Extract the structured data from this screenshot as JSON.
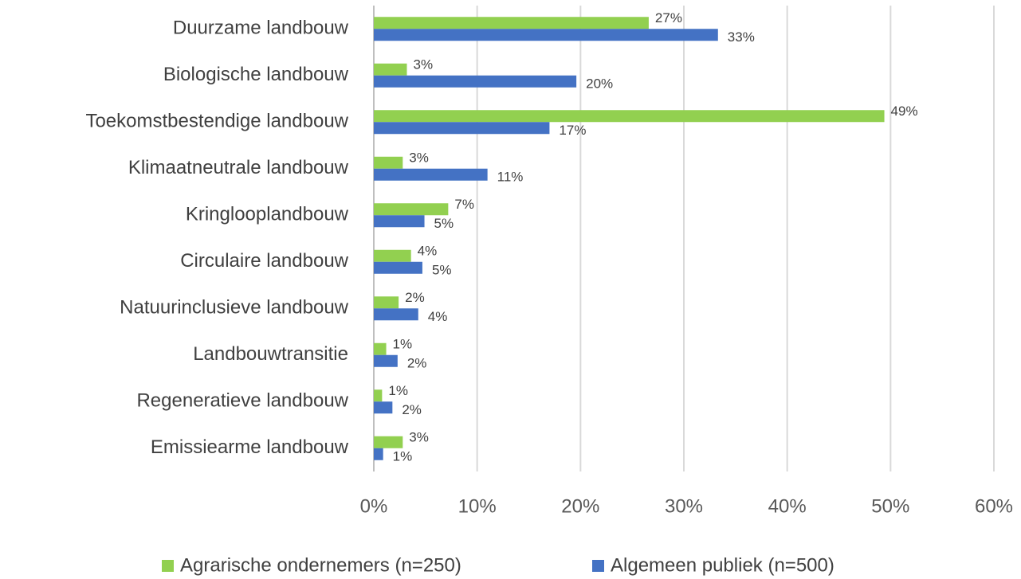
{
  "chart_data": {
    "type": "hbar",
    "categories": [
      "Duurzame landbouw",
      "Biologische landbouw",
      "Toekomstbestendige landbouw",
      "Klimaatneutrale landbouw",
      "Kringlooplandbouw",
      "Circulaire landbouw",
      "Natuurinclusieve landbouw",
      "Landbouwtransitie",
      "Regeneratieve landbouw",
      "Emissiearme landbouw"
    ],
    "series": [
      {
        "name": "Agrarische ondernemers (n=250)",
        "color": "#92d050",
        "values": [
          26.6,
          3.2,
          49.4,
          2.8,
          7.2,
          3.6,
          2.4,
          1.2,
          0.8,
          2.8
        ],
        "value_labels": [
          "27%",
          "3%",
          "49%",
          "3%",
          "7%",
          "4%",
          "2%",
          "1%",
          "1%",
          "3%"
        ]
      },
      {
        "name": "Algemeen publiek (n=500)",
        "color": "#4472c4",
        "values": [
          33.3,
          19.6,
          17.0,
          11.0,
          4.9,
          4.7,
          4.3,
          2.3,
          1.8,
          0.9
        ],
        "value_labels": [
          "33%",
          "20%",
          "17%",
          "11%",
          "5%",
          "5%",
          "4%",
          "2%",
          "2%",
          "1%"
        ]
      }
    ],
    "xlim": [
      0,
      60
    ],
    "xticks": [
      {
        "value": 0,
        "label": "0%"
      },
      {
        "value": 10,
        "label": "10%"
      },
      {
        "value": 20,
        "label": "20%"
      },
      {
        "value": 30,
        "label": "30%"
      },
      {
        "value": 40,
        "label": "40%"
      },
      {
        "value": 50,
        "label": "50%"
      },
      {
        "value": 60,
        "label": "60%"
      }
    ],
    "grid": true,
    "legend": "bottom"
  }
}
